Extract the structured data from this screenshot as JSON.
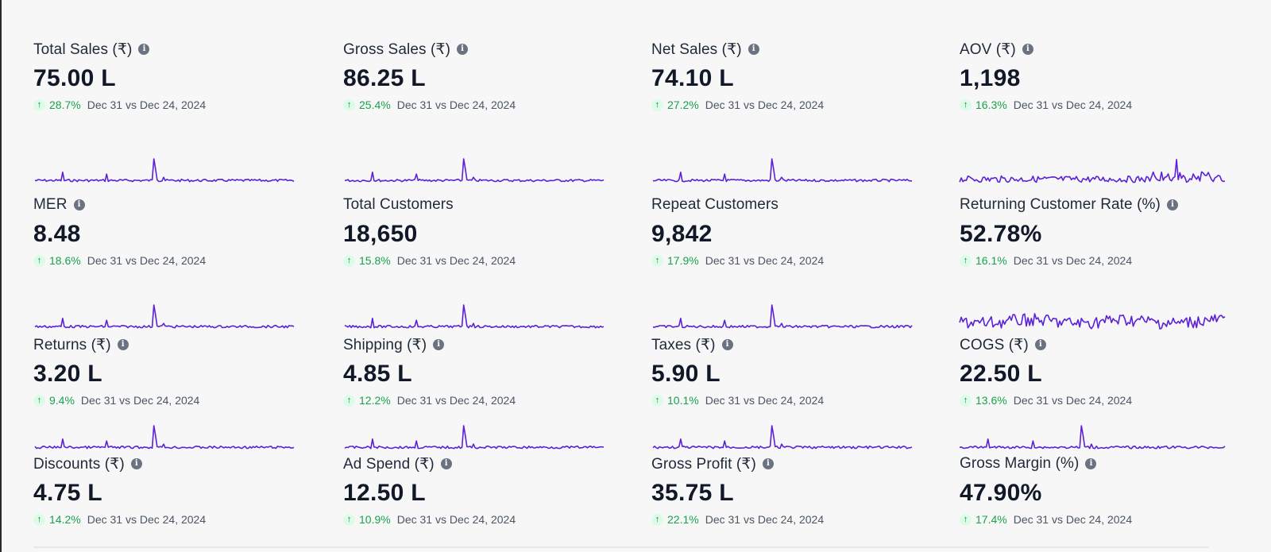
{
  "cards": [
    {
      "title": "Total Sales (₹)",
      "info": true,
      "value": "75.00 L",
      "change": "28.7%",
      "compare": "Dec 31 vs Dec 24, 2024",
      "spark": "spiky"
    },
    {
      "title": "Gross Sales (₹)",
      "info": true,
      "value": "86.25 L",
      "change": "25.4%",
      "compare": "Dec 31 vs Dec 24, 2024",
      "spark": "spiky"
    },
    {
      "title": "Net Sales (₹)",
      "info": true,
      "value": "74.10 L",
      "change": "27.2%",
      "compare": "Dec 31 vs Dec 24, 2024",
      "spark": "spiky"
    },
    {
      "title": "AOV (₹)",
      "info": true,
      "value": "1,198",
      "change": "16.3%",
      "compare": "Dec 31 vs Dec 24, 2024",
      "spark": "noisy"
    },
    {
      "title": "MER",
      "info": true,
      "value": "8.48",
      "change": "18.6%",
      "compare": "Dec 31 vs Dec 24, 2024",
      "spark": "spiky"
    },
    {
      "title": "Total Customers",
      "info": false,
      "value": "18,650",
      "change": "15.8%",
      "compare": "Dec 31 vs Dec 24, 2024",
      "spark": "spiky"
    },
    {
      "title": "Repeat Customers",
      "info": false,
      "value": "9,842",
      "change": "17.9%",
      "compare": "Dec 31 vs Dec 24, 2024",
      "spark": "spiky"
    },
    {
      "title": "Returning Customer Rate (%)",
      "info": true,
      "value": "52.78%",
      "change": "16.1%",
      "compare": "Dec 31 vs Dec 24, 2024",
      "spark": "very-noisy"
    },
    {
      "title": "Returns (₹)",
      "info": true,
      "value": "3.20 L",
      "change": "9.4%",
      "compare": "Dec 31 vs Dec 24, 2024",
      "spark": "spiky"
    },
    {
      "title": "Shipping (₹)",
      "info": true,
      "value": "4.85 L",
      "change": "12.2%",
      "compare": "Dec 31 vs Dec 24, 2024",
      "spark": "spiky"
    },
    {
      "title": "Taxes (₹)",
      "info": true,
      "value": "5.90 L",
      "change": "10.1%",
      "compare": "Dec 31 vs Dec 24, 2024",
      "spark": "spiky"
    },
    {
      "title": "COGS (₹)",
      "info": true,
      "value": "22.50 L",
      "change": "13.6%",
      "compare": "Dec 31 vs Dec 24, 2024",
      "spark": "spiky"
    },
    {
      "title": "Discounts (₹)",
      "info": true,
      "value": "4.75 L",
      "change": "14.2%",
      "compare": "Dec 31 vs Dec 24, 2024",
      "spark": "none"
    },
    {
      "title": "Ad Spend (₹)",
      "info": true,
      "value": "12.50 L",
      "change": "10.9%",
      "compare": "Dec 31 vs Dec 24, 2024",
      "spark": "none"
    },
    {
      "title": "Gross Profit (₹)",
      "info": true,
      "value": "35.75 L",
      "change": "22.1%",
      "compare": "Dec 31 vs Dec 24, 2024",
      "spark": "none"
    },
    {
      "title": "Gross Margin (%)",
      "info": true,
      "value": "47.90%",
      "change": "17.4%",
      "compare": "Dec 31 vs Dec 24, 2024",
      "spark": "none"
    }
  ],
  "icons": {
    "info": "info-icon",
    "change": "arrow-up-icon"
  },
  "colors": {
    "accent": "#5b21d6",
    "positive": "#16a34a",
    "positive_bg": "#dcfce7",
    "background": "#f7f7f8"
  }
}
